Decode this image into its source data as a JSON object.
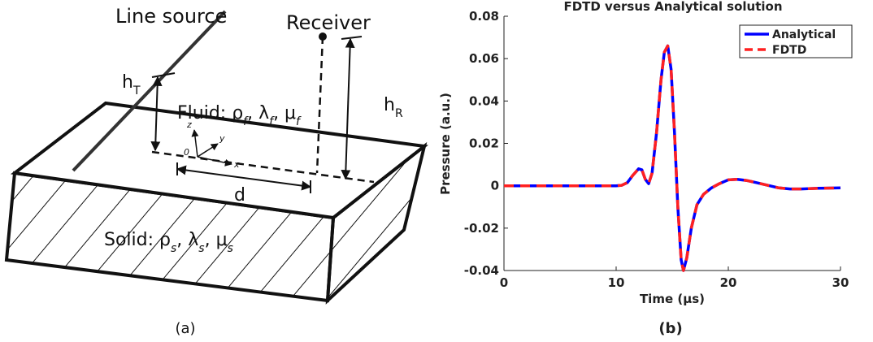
{
  "diagram": {
    "source_label": "Line source",
    "receiver_label": "Receiver",
    "h_T": [
      "h",
      "T"
    ],
    "h_R": [
      "h",
      "R"
    ],
    "d_label": "d",
    "fluid": [
      "Fluid: ρ",
      "f",
      ", λ",
      "f",
      ", μ",
      "f"
    ],
    "solid": [
      "Solid: ρ",
      "s",
      ", λ",
      "s",
      ", μ",
      "s"
    ],
    "axes": {
      "z": "z",
      "y": "y",
      "x": "x",
      "origin": "0"
    },
    "caption": "(a)"
  },
  "chart_data": {
    "type": "line",
    "title": "FDTD versus Analytical solution",
    "x_label": "Time (μs)",
    "y_label": "Pressure (a.u.)",
    "x": [
      0,
      5,
      10,
      10.5,
      11,
      11.5,
      12,
      12.3,
      12.6,
      12.9,
      13.2,
      13.6,
      14,
      14.3,
      14.6,
      14.9,
      15.2,
      15.5,
      15.8,
      16,
      16.3,
      16.7,
      17.2,
      17.8,
      18.5,
      19.2,
      20,
      20.8,
      21.6,
      22.5,
      23.5,
      24.5,
      25.5,
      26.5,
      28,
      30
    ],
    "series": [
      {
        "name": "Analytical",
        "color": "#0000ff",
        "dash": false,
        "values": [
          0,
          0,
          0,
          0.0002,
          0.0015,
          0.005,
          0.008,
          0.0075,
          0.003,
          0.001,
          0.006,
          0.025,
          0.05,
          0.063,
          0.066,
          0.055,
          0.025,
          -0.01,
          -0.035,
          -0.04,
          -0.034,
          -0.02,
          -0.009,
          -0.004,
          -0.001,
          0.001,
          0.0028,
          0.003,
          0.0025,
          0.0015,
          0.0002,
          -0.001,
          -0.0015,
          -0.0015,
          -0.0012,
          -0.001
        ]
      },
      {
        "name": "FDTD",
        "color": "#ff2020",
        "dash": true,
        "values": [
          0,
          0,
          0,
          0.0002,
          0.0015,
          0.005,
          0.008,
          0.0075,
          0.003,
          0.001,
          0.006,
          0.025,
          0.05,
          0.063,
          0.066,
          0.055,
          0.025,
          -0.01,
          -0.035,
          -0.04,
          -0.034,
          -0.02,
          -0.009,
          -0.004,
          -0.001,
          0.001,
          0.0028,
          0.003,
          0.0025,
          0.0015,
          0.0002,
          -0.001,
          -0.0015,
          -0.0015,
          -0.0012,
          -0.001
        ]
      }
    ],
    "xlim": [
      0,
      30
    ],
    "xticks": [
      0,
      10,
      20,
      30
    ],
    "ylim": [
      -0.04,
      0.08
    ],
    "yticks": [
      -0.04,
      -0.02,
      0,
      0.02,
      0.04,
      0.06,
      0.08
    ],
    "legend": "upper right",
    "caption": "(b)"
  }
}
